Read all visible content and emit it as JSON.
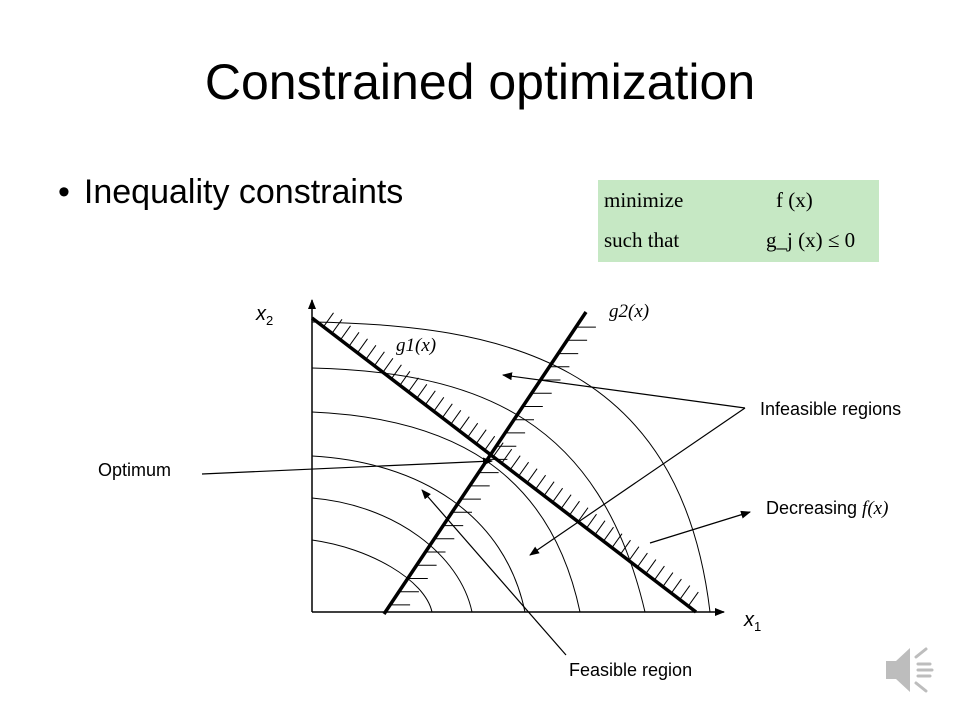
{
  "slide": {
    "title": "Constrained optimization",
    "bullet": "Inequality constraints",
    "bullet_marker": "•"
  },
  "formula": {
    "row1_keyword": "minimize",
    "row1_expr": "f (x)",
    "row2_keyword": "such that",
    "row2_expr": "g_j (x) ≤ 0",
    "background": "#c6e8c4"
  },
  "diagram": {
    "x_axis_label": "x",
    "x_axis_sub": "1",
    "y_axis_label": "x",
    "y_axis_sub": "2",
    "g1_label": "g1(x)",
    "g2_label": "g2(x)",
    "label_infeasible": "Infeasible regions",
    "label_decreasing_prefix": "Decreasing ",
    "label_decreasing_fx": "f(x)",
    "label_optimum": "Optimum",
    "label_feasible": "Feasible region"
  },
  "icons": {
    "speaker": "speaker-icon"
  }
}
